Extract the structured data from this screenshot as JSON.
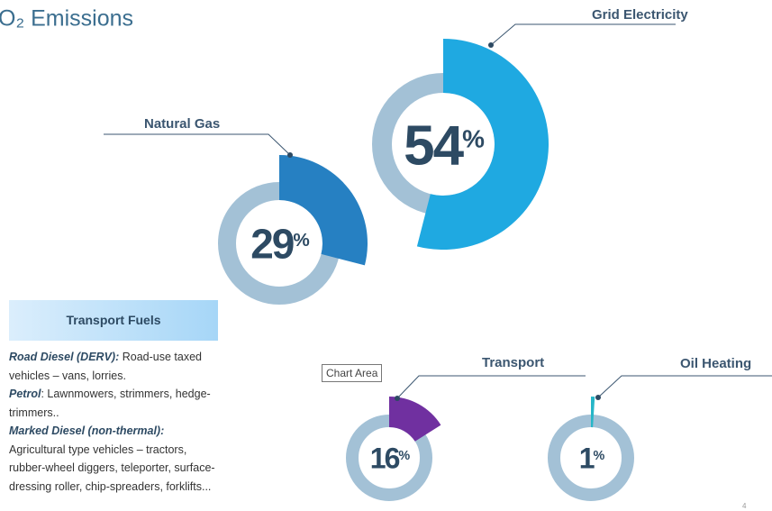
{
  "title": "O₂ Emissions",
  "chart_data": [
    {
      "type": "pie",
      "title": "Grid Electricity",
      "values": [
        54
      ],
      "value_labels": [
        "54%"
      ],
      "color": "#1fa9e1",
      "ring_color": "#a3c1d6"
    },
    {
      "type": "pie",
      "title": "Natural Gas",
      "values": [
        29
      ],
      "value_labels": [
        "29%"
      ],
      "color": "#2680c2",
      "ring_color": "#a3c1d6"
    },
    {
      "type": "pie",
      "title": "Transport",
      "values": [
        16
      ],
      "value_labels": [
        "16%"
      ],
      "color": "#7030a0",
      "ring_color": "#a3c1d6"
    },
    {
      "type": "pie",
      "title": "Oil Heating",
      "values": [
        1
      ],
      "value_labels": [
        "1%"
      ],
      "color": "#26b6c8",
      "ring_color": "#a3c1d6"
    }
  ],
  "sidebar": {
    "heading": "Transport Fuels",
    "items": [
      {
        "term": "Road Diesel (DERV):",
        "text": " Road-use taxed vehicles – vans, lorries."
      },
      {
        "term": "Petrol",
        "text": ": Lawnmowers, strimmers, hedge-trimmers.."
      },
      {
        "term": "Marked Diesel (non-thermal):",
        "text": "Agricultural type vehicles – tractors, rubber-wheel diggers, teleporter, surface-dressing roller, chip-spreaders, forklifts..."
      }
    ]
  },
  "tooltip": "Chart Area",
  "page_number": "4"
}
